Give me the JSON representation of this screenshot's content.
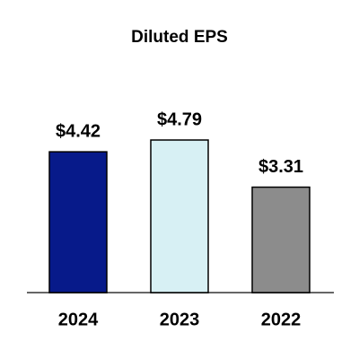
{
  "chart_data": {
    "type": "bar",
    "title": "Diluted EPS",
    "categories": [
      "2024",
      "2023",
      "2022"
    ],
    "values": [
      4.42,
      4.79,
      3.31
    ],
    "value_labels": [
      "$4.42",
      "$4.79",
      "$3.31"
    ],
    "colors": [
      "#071a8a",
      "#d7f0f4",
      "#8c8c8c"
    ]
  }
}
